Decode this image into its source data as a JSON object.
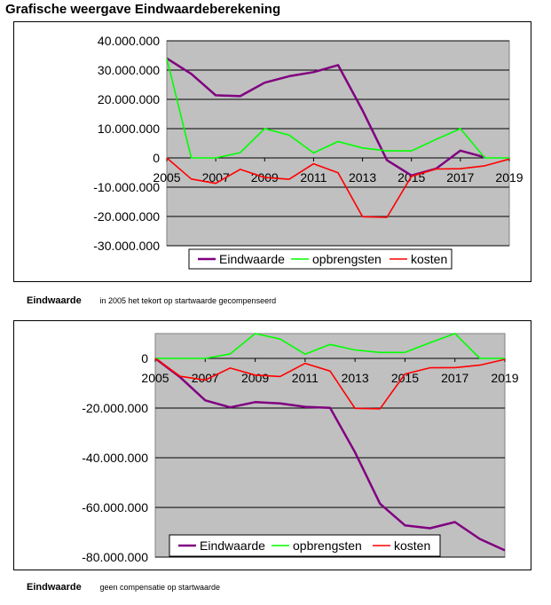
{
  "page": {
    "title": "Grafische weergave Eindwaardeberekening"
  },
  "colors": {
    "eindwaarde": "#800080",
    "opbrengsten": "#00ff00",
    "kosten": "#ff0000",
    "plot_bg": "#c0c0c0",
    "grid": "#000000"
  },
  "captions": [
    {
      "label": "Eindwaarde",
      "text": "in 2005 het tekort op startwaarde gecompenseerd"
    },
    {
      "label": "Eindwaarde",
      "text": "geen compensatie op startwaarde"
    }
  ],
  "chart_data": [
    {
      "type": "line",
      "x": [
        2005,
        2006,
        2007,
        2008,
        2009,
        2010,
        2011,
        2012,
        2013,
        2014,
        2015,
        2016,
        2017,
        2018,
        2019
      ],
      "xticks": [
        2005,
        2007,
        2009,
        2011,
        2013,
        2015,
        2017,
        2019
      ],
      "xtick_labels": [
        "2005",
        "2007",
        "2009",
        "2011",
        "2013",
        "2015",
        "2017",
        "2019"
      ],
      "ylim": [
        -30000000,
        40000000
      ],
      "yticks": [
        40000000,
        30000000,
        20000000,
        10000000,
        0,
        -10000000,
        -20000000,
        -30000000
      ],
      "ytick_labels": [
        "40.000.000",
        "30.000.000",
        "20.000.000",
        "10.000.000",
        "0",
        "-10.000.000",
        "-20.000.000",
        "-30.000.000"
      ],
      "grid": true,
      "legend": "bottom",
      "series": [
        {
          "name": "Eindwaarde",
          "color": "#800080",
          "values": [
            34000000,
            28700000,
            21400000,
            21100000,
            25700000,
            27900000,
            29300000,
            31700000,
            16200000,
            -800000,
            -6000000,
            -3700000,
            2500000,
            200000,
            null
          ]
        },
        {
          "name": "opbrengsten",
          "color": "#00ff00",
          "values": [
            34000000,
            0,
            0,
            1800000,
            10000000,
            7800000,
            1700000,
            5600000,
            3400000,
            2400000,
            2400000,
            6300000,
            10000000,
            0,
            0
          ]
        },
        {
          "name": "kosten",
          "color": "#ff0000",
          "values": [
            0,
            -7200000,
            -8700000,
            -3900000,
            -6700000,
            -7300000,
            -2000000,
            -5100000,
            -20100000,
            -20300000,
            -6300000,
            -3800000,
            -3700000,
            -2700000,
            -400000
          ]
        }
      ]
    },
    {
      "type": "line",
      "x": [
        2005,
        2006,
        2007,
        2008,
        2009,
        2010,
        2011,
        2012,
        2013,
        2014,
        2015,
        2016,
        2017,
        2018,
        2019
      ],
      "xticks": [
        2005,
        2007,
        2009,
        2011,
        2013,
        2015,
        2017,
        2019
      ],
      "xtick_labels": [
        "2005",
        "2007",
        "2009",
        "2011",
        "2013",
        "2015",
        "2017",
        "2019"
      ],
      "ylim": [
        -80000000,
        10000000
      ],
      "yticks": [
        0,
        -20000000,
        -40000000,
        -60000000,
        -80000000
      ],
      "ytick_labels": [
        "0",
        "-20.000.000",
        "-40.000.000",
        "-60.000.000",
        "-80.000.000"
      ],
      "grid": true,
      "legend": "bottom",
      "series": [
        {
          "name": "Eindwaarde",
          "color": "#800080",
          "values": [
            0,
            -7600000,
            -16900000,
            -19700000,
            -17600000,
            -18100000,
            -19500000,
            -19900000,
            -37800000,
            -58500000,
            -67200000,
            -68400000,
            -65900000,
            -72700000,
            -77300000
          ]
        },
        {
          "name": "opbrengsten",
          "color": "#00ff00",
          "values": [
            0,
            0,
            0,
            1800000,
            10000000,
            7800000,
            1700000,
            5600000,
            3400000,
            2400000,
            2400000,
            6300000,
            10000000,
            0,
            0
          ]
        },
        {
          "name": "kosten",
          "color": "#ff0000",
          "values": [
            0,
            -7200000,
            -8700000,
            -3900000,
            -6700000,
            -7300000,
            -2000000,
            -5100000,
            -20100000,
            -20300000,
            -6300000,
            -3800000,
            -3700000,
            -2700000,
            -400000
          ]
        }
      ]
    }
  ]
}
